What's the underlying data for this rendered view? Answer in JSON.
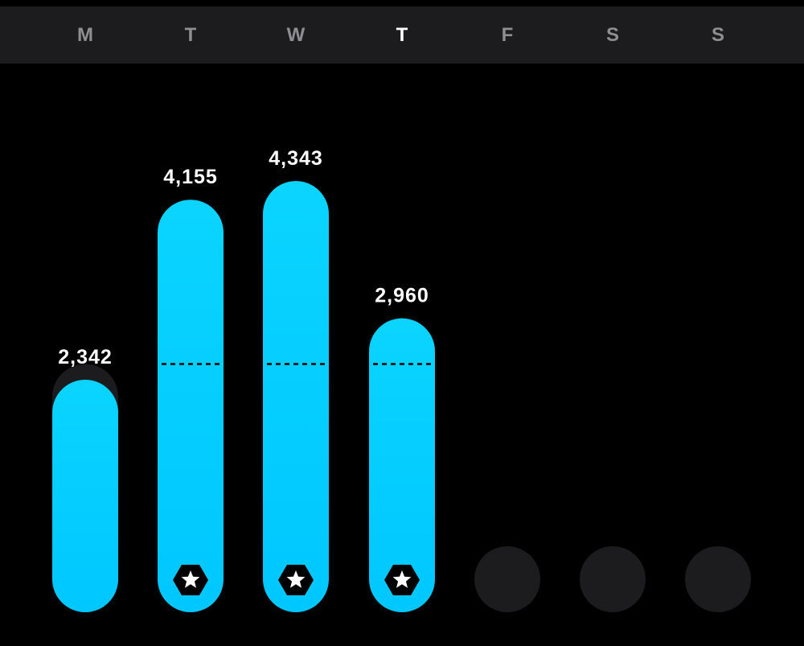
{
  "day_header": {
    "days": [
      "M",
      "T",
      "W",
      "T",
      "F",
      "S",
      "S"
    ],
    "current_index": 3
  },
  "chart_data": {
    "type": "bar",
    "categories": [
      "M",
      "T",
      "W",
      "T",
      "F",
      "S",
      "S"
    ],
    "values": [
      2342,
      4155,
      4343,
      2960,
      null,
      null,
      null
    ],
    "value_labels": [
      "2,342",
      "4,155",
      "4,343",
      "2,960",
      "",
      "",
      ""
    ],
    "goal": 2500,
    "goal_met": [
      false,
      true,
      true,
      true,
      false,
      false,
      false
    ],
    "goal_badge_icon": "star-icon",
    "bar_color": "#00c7ff",
    "track_color": "#1c1c1e",
    "xlabel": "",
    "ylabel": "",
    "grid": false,
    "legend": "none"
  }
}
